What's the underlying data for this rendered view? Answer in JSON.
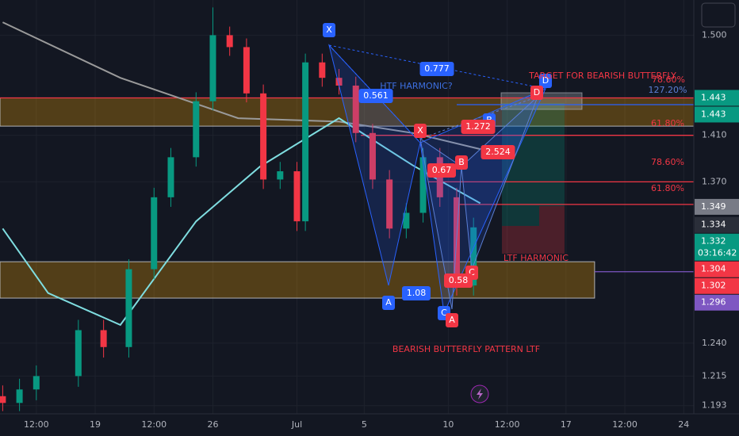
{
  "chart_data": {
    "type": "candlestick",
    "x": [
      -5.5,
      -4.5,
      -3.5,
      -1,
      0.5,
      2,
      3.5,
      4.5,
      6,
      7,
      8,
      9,
      10,
      11,
      12,
      12.5,
      13.5,
      14.5,
      15.5,
      16.5,
      17.5,
      18.5,
      19.5,
      20.5,
      21.5,
      22.5
    ],
    "open": [
      1.2,
      1.195,
      1.205,
      1.215,
      1.25,
      1.237,
      1.298,
      1.357,
      1.391,
      1.44,
      1.5,
      1.489,
      1.447,
      1.372,
      1.379,
      1.337,
      1.475,
      1.461,
      1.454,
      1.412,
      1.372,
      1.331,
      1.344,
      1.391,
      1.357,
      1.285
    ],
    "high": [
      1.208,
      1.213,
      1.223,
      1.258,
      1.258,
      1.306,
      1.365,
      1.399,
      1.448,
      1.526,
      1.508,
      1.497,
      1.455,
      1.387,
      1.387,
      1.483,
      1.483,
      1.469,
      1.462,
      1.42,
      1.38,
      1.352,
      1.399,
      1.399,
      1.365,
      1.34
    ],
    "low": [
      1.189,
      1.189,
      1.197,
      1.207,
      1.229,
      1.229,
      1.29,
      1.349,
      1.383,
      1.432,
      1.481,
      1.439,
      1.364,
      1.364,
      1.329,
      1.329,
      1.453,
      1.446,
      1.404,
      1.364,
      1.323,
      1.323,
      1.336,
      1.349,
      1.277,
      1.277
    ],
    "close": [
      1.195,
      1.205,
      1.215,
      1.25,
      1.237,
      1.298,
      1.357,
      1.391,
      1.44,
      1.5,
      1.489,
      1.447,
      1.372,
      1.379,
      1.337,
      1.475,
      1.461,
      1.454,
      1.412,
      1.372,
      1.331,
      1.344,
      1.391,
      1.357,
      1.285,
      1.332
    ],
    "up_color": "#089981",
    "down_color": "#f23645",
    "moving_averages": [
      {
        "color": "#9a9a9a",
        "x": [
          -5.5,
          1.5,
          8.5,
          14.5,
          18.9,
          22.9
        ],
        "values": [
          1.512,
          1.461,
          1.425,
          1.422,
          1.412,
          1.398
        ]
      },
      {
        "color": "#7fdde0",
        "x": [
          -5.5,
          -2.8,
          1.5,
          6,
          9.8,
          14.5,
          18.9,
          22.9
        ],
        "values": [
          1.331,
          1.279,
          1.254,
          1.337,
          1.383,
          1.425,
          1.384,
          1.352
        ]
      }
    ],
    "xlim": [
      -5.66,
      35.6
    ],
    "xticks": [
      {
        "value": -3.5,
        "label": "12:00"
      },
      {
        "value": 0,
        "label": "19"
      },
      {
        "value": 3.5,
        "label": "12:00"
      },
      {
        "value": 7,
        "label": "26"
      },
      {
        "value": 12,
        "label": "Jul"
      },
      {
        "value": 16,
        "label": "5"
      },
      {
        "value": 21,
        "label": "10"
      },
      {
        "value": 24.5,
        "label": "12:00"
      },
      {
        "value": 28,
        "label": "17"
      },
      {
        "value": 31.5,
        "label": "12:00"
      },
      {
        "value": 35,
        "label": "24"
      }
    ],
    "ylim": [
      1.187,
      1.533
    ],
    "log_scale": true,
    "yticks": [
      {
        "value": 1.5,
        "label": "1.500"
      },
      {
        "value": 1.41,
        "label": "1.410"
      },
      {
        "value": 1.37,
        "label": "1.370"
      },
      {
        "value": 1.24,
        "label": "1.240"
      },
      {
        "value": 1.215,
        "label": "1.215"
      },
      {
        "value": 1.193,
        "label": "1.193"
      }
    ],
    "grid": true,
    "zones": [
      {
        "from": 1.418,
        "to": 1.443,
        "x_end": 35.6,
        "color": "#f7a600"
      },
      {
        "from": 1.275,
        "to": 1.304,
        "x_end": 29.7,
        "color": "#f7a600"
      }
    ],
    "levels": [
      {
        "value": 1.443,
        "x_start": -5.66,
        "color": "#f23645"
      },
      {
        "value": 1.437,
        "x_start": 21.5,
        "color": "#2962ff"
      },
      {
        "value": 1.41,
        "x_start": 15.8,
        "color": "#f23645"
      },
      {
        "value": 1.37,
        "x_start": 19.8,
        "color": "#f23645"
      },
      {
        "value": 1.351,
        "x_start": 21.5,
        "color": "#f23645"
      },
      {
        "value": 1.296,
        "x_start": 29.7,
        "color": "#7e57c2"
      }
    ],
    "price_labels": [
      {
        "value": 1.443,
        "color": "#089981"
      },
      {
        "value": 1.443,
        "color": "#089981"
      },
      {
        "value": 1.349,
        "color": "#787b86"
      },
      {
        "value": 1.334,
        "color": "#2a2e39"
      },
      {
        "value": 1.332,
        "color": "#089981",
        "countdown": "03:16:42"
      },
      {
        "value": 1.304,
        "color": "#f23645"
      },
      {
        "value": 1.302,
        "color": "#f23645"
      },
      {
        "value": 1.296,
        "color": "#7e57c2"
      }
    ],
    "annotations": [
      {
        "text": "X",
        "color": "#2962ff",
        "boxed": true
      },
      {
        "text": "A",
        "color": "#2962ff",
        "boxed": true
      },
      {
        "text": "0.777",
        "color": "#2962ff",
        "boxed": true
      },
      {
        "text": "0.561",
        "color": "#2962ff",
        "boxed": true
      },
      {
        "text": "1.08",
        "color": "#2962ff",
        "boxed": true
      },
      {
        "text": "C",
        "color": "#2962ff",
        "boxed": true
      },
      {
        "text": "D",
        "color": "#2962ff",
        "boxed": true
      },
      {
        "text": "B",
        "color": "#2962ff",
        "boxed": true
      },
      {
        "text": "X",
        "color": "#f23645",
        "boxed": true
      },
      {
        "text": "A",
        "color": "#f23645",
        "boxed": true
      },
      {
        "text": "B",
        "color": "#f23645",
        "boxed": true
      },
      {
        "text": "C",
        "color": "#f23645",
        "boxed": true
      },
      {
        "text": "D",
        "color": "#f23645",
        "boxed": true
      },
      {
        "text": "1.272",
        "color": "#f23645",
        "boxed": true
      },
      {
        "text": "2.524",
        "color": "#f23645",
        "boxed": true
      },
      {
        "text": "0.67",
        "color": "#f23645",
        "boxed": true
      },
      {
        "text": "0.58",
        "color": "#f23645",
        "boxed": true
      },
      {
        "text": "HTF HARMONIC?",
        "color": "#3d6fe0",
        "boxed": false
      },
      {
        "text": "TARGET FOR BEARISH BUTTERFLY",
        "color": "#f23645",
        "boxed": false
      },
      {
        "text": "LTF HARMONIC",
        "color": "#f23645",
        "boxed": false
      },
      {
        "text": "BEARISH BUTTERFLY PATTERN LTF",
        "color": "#f23645",
        "boxed": false
      },
      {
        "text": "78.60%",
        "color": "#f23645",
        "boxed": false
      },
      {
        "text": "127.20%",
        "color": "#5b7fd6",
        "boxed": false
      },
      {
        "text": "61.80%",
        "color": "#f23645",
        "boxed": false
      },
      {
        "text": "78.60%",
        "color": "#f23645",
        "boxed": false
      },
      {
        "text": "61.80%",
        "color": "#f23645",
        "boxed": false
      }
    ]
  }
}
